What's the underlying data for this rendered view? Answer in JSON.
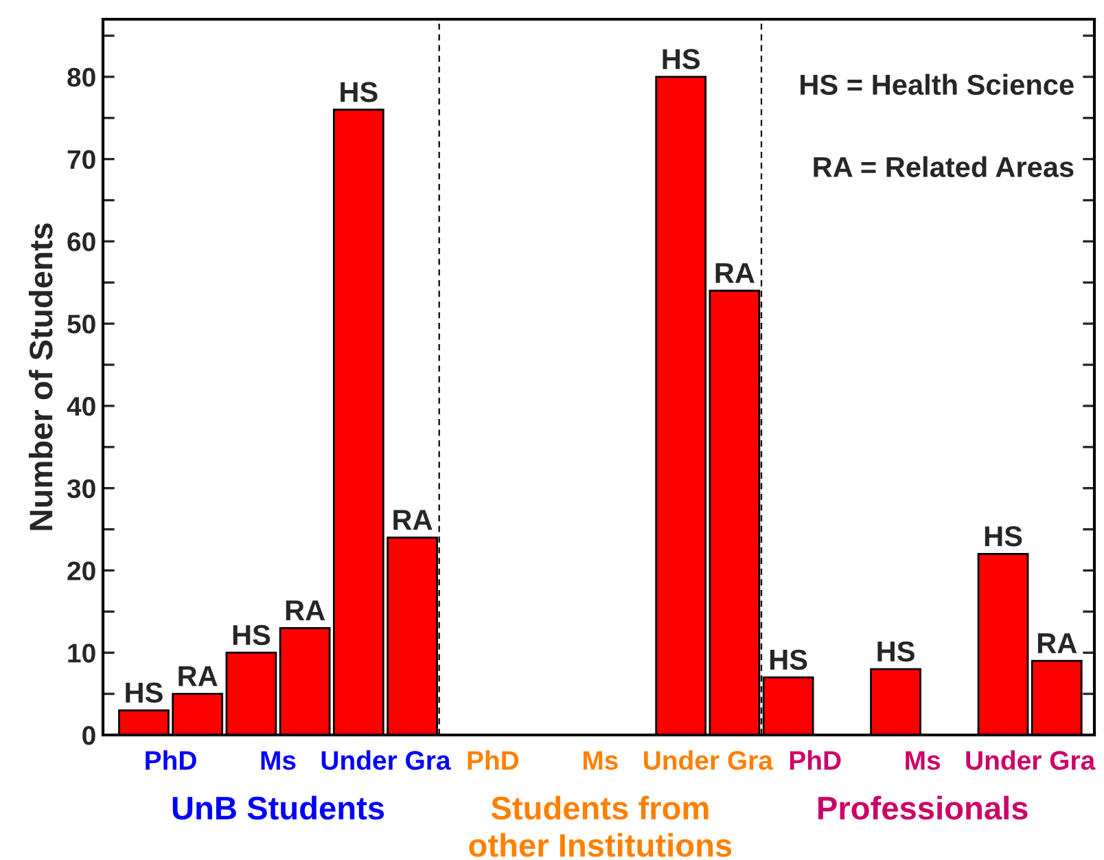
{
  "chart_data": {
    "type": "bar",
    "ylabel": "Number of Students",
    "categories": [
      "PhD",
      "Ms",
      "Under Gra",
      "PhD",
      "Ms",
      "Under Gra",
      "PhD",
      "Ms",
      "Under Gra"
    ],
    "series": [
      {
        "color": "#ff0000",
        "values": [
          3,
          10,
          76,
          null,
          null,
          80,
          7,
          8,
          22
        ],
        "value_labels": [
          "HS",
          "HS",
          "HS",
          null,
          null,
          "HS",
          "HS",
          "HS",
          "HS"
        ]
      },
      {
        "color": "#ff0000",
        "values": [
          5,
          13,
          24,
          null,
          null,
          54,
          null,
          null,
          9
        ],
        "value_labels": [
          "RA",
          "RA",
          "RA",
          null,
          null,
          "RA",
          null,
          null,
          "RA"
        ]
      }
    ],
    "ylim": [
      0,
      87
    ],
    "yticks": [
      0,
      {
        "value": 5,
        "label": null
      },
      10,
      {
        "value": 15,
        "label": null
      },
      20,
      {
        "value": 25,
        "label": null
      },
      30,
      {
        "value": 35,
        "label": null
      },
      40,
      {
        "value": 45,
        "label": null
      },
      50,
      {
        "value": 55,
        "label": null
      },
      60,
      {
        "value": 65,
        "label": null
      },
      70,
      {
        "value": 75,
        "label": null
      },
      80,
      {
        "value": 85,
        "label": null
      }
    ],
    "annotations": [
      "UnB Students",
      "Students from\nother Institutions",
      "Professionals",
      "HS = Health Science",
      "RA = Related Areas"
    ],
    "grid": false,
    "legend": false
  }
}
